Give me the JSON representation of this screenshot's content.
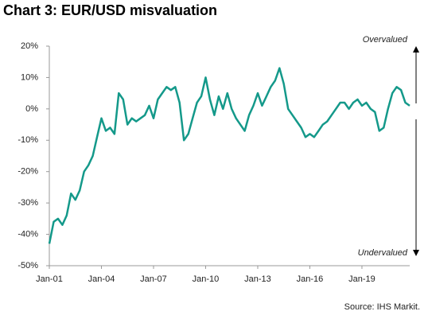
{
  "chart_data": {
    "type": "line",
    "title": "Chart 3: EUR/USD misvaluation",
    "annotations": [
      "Overvalued",
      "Undervalued"
    ],
    "source": "Source: IHS Markit.",
    "x": [
      2001.0,
      2001.25,
      2001.5,
      2001.75,
      2002.0,
      2002.25,
      2002.5,
      2002.75,
      2003.0,
      2003.25,
      2003.5,
      2003.75,
      2004.0,
      2004.25,
      2004.5,
      2004.75,
      2005.0,
      2005.25,
      2005.5,
      2005.75,
      2006.0,
      2006.25,
      2006.5,
      2006.75,
      2007.0,
      2007.25,
      2007.5,
      2007.75,
      2008.0,
      2008.25,
      2008.5,
      2008.75,
      2009.0,
      2009.25,
      2009.5,
      2009.75,
      2010.0,
      2010.25,
      2010.5,
      2010.75,
      2011.0,
      2011.25,
      2011.5,
      2011.75,
      2012.0,
      2012.25,
      2012.5,
      2012.75,
      2013.0,
      2013.25,
      2013.5,
      2013.75,
      2014.0,
      2014.25,
      2014.5,
      2014.75,
      2015.0,
      2015.25,
      2015.5,
      2015.75,
      2016.0,
      2016.25,
      2016.5,
      2016.75,
      2017.0,
      2017.25,
      2017.5,
      2017.75,
      2018.0,
      2018.25,
      2018.5,
      2018.75,
      2019.0,
      2019.25,
      2019.5,
      2019.75,
      2020.0,
      2020.25,
      2020.5,
      2020.75,
      2021.0,
      2021.25,
      2021.5,
      2021.75
    ],
    "series": [
      {
        "name": "EUR/USD misvaluation",
        "color": "#14998a",
        "values": [
          -43,
          -36,
          -35,
          -37,
          -34,
          -27,
          -29,
          -26,
          -20,
          -18,
          -15,
          -9,
          -3,
          -7,
          -6,
          -8,
          5,
          3,
          -5,
          -3,
          -4,
          -3,
          -2,
          1,
          -3,
          3,
          5,
          7,
          6,
          7,
          2,
          -10,
          -8,
          -3,
          2,
          4,
          10,
          3,
          -2,
          4,
          0,
          5,
          0,
          -3,
          -5,
          -7,
          -2,
          1,
          5,
          1,
          4,
          7,
          9,
          13,
          8,
          0,
          -2,
          -4,
          -6,
          -9,
          -8,
          -9,
          -7,
          -5,
          -4,
          -2,
          0,
          2,
          2,
          0,
          2,
          3,
          1,
          2,
          0,
          -1,
          -7,
          -6,
          0,
          5,
          7,
          6,
          2,
          1
        ]
      }
    ],
    "xlim": [
      2001,
      2021.75
    ],
    "xticks": [
      {
        "value": 2001,
        "label": "Jan-01"
      },
      {
        "value": 2004,
        "label": "Jan-04"
      },
      {
        "value": 2007,
        "label": "Jan-07"
      },
      {
        "value": 2010,
        "label": "Jan-10"
      },
      {
        "value": 2013,
        "label": "Jan-13"
      },
      {
        "value": 2016,
        "label": "Jan-16"
      },
      {
        "value": 2019,
        "label": "Jan-19"
      }
    ],
    "ylim": [
      -50,
      20
    ],
    "yticks": [
      {
        "value": -50,
        "label": "-50%"
      },
      {
        "value": -40,
        "label": "-40%"
      },
      {
        "value": -30,
        "label": "-30%"
      },
      {
        "value": -20,
        "label": "-20%"
      },
      {
        "value": -10,
        "label": "-10%"
      },
      {
        "value": 0,
        "label": "0%"
      },
      {
        "value": 10,
        "label": "10%"
      },
      {
        "value": 20,
        "label": "20%"
      }
    ],
    "grid": false
  }
}
